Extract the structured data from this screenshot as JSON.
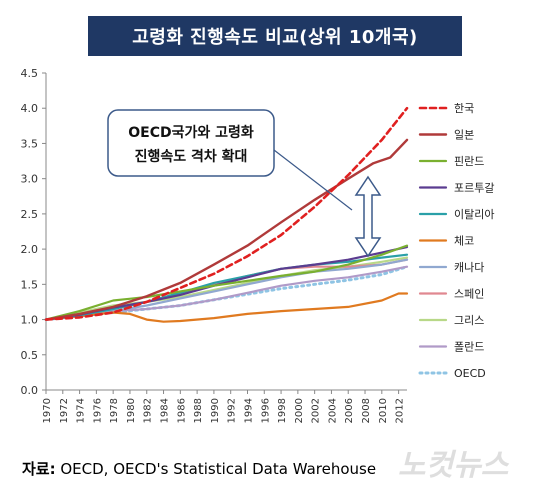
{
  "title": "고령화  진행속도 비교(상위 10개국)",
  "source_label": "자료:",
  "source_text": " OECD, OECD's Statistical Data Warehouse",
  "watermark": "노컷뉴스",
  "annotation": [
    "OECD국가와 고령화",
    "진행속도 격차 확대"
  ],
  "chart_data": {
    "type": "line",
    "title": "고령화  진행속도 비교(상위 10개국)",
    "xlabel": "",
    "ylabel": "",
    "xlim": [
      1970,
      2013
    ],
    "ylim": [
      0.0,
      4.5
    ],
    "yticks": [
      "0.0",
      "0.5",
      "1.0",
      "1.5",
      "2.0",
      "2.5",
      "3.0",
      "3.5",
      "4.0",
      "4.5"
    ],
    "xticks": [
      "1970",
      "1972",
      "1974",
      "1976",
      "1978",
      "1980",
      "1982",
      "1984",
      "1986",
      "1988",
      "1990",
      "1992",
      "1994",
      "1996",
      "1998",
      "2000",
      "2002",
      "2004",
      "2006",
      "2008",
      "2010",
      "2012"
    ],
    "grid": false,
    "legend": "right",
    "series": [
      {
        "name": "한국",
        "color": "#e02020",
        "dash": "6,4",
        "width": 2.6,
        "points": [
          [
            1970,
            1.0
          ],
          [
            1974,
            1.03
          ],
          [
            1978,
            1.1
          ],
          [
            1982,
            1.25
          ],
          [
            1986,
            1.45
          ],
          [
            1990,
            1.65
          ],
          [
            1994,
            1.9
          ],
          [
            1998,
            2.2
          ],
          [
            2002,
            2.6
          ],
          [
            2006,
            3.05
          ],
          [
            2010,
            3.55
          ],
          [
            2013,
            4.0
          ]
        ]
      },
      {
        "name": "일본",
        "color": "#b03a3a",
        "dash": "",
        "width": 2.4,
        "points": [
          [
            1970,
            1.0
          ],
          [
            1974,
            1.08
          ],
          [
            1978,
            1.18
          ],
          [
            1982,
            1.33
          ],
          [
            1986,
            1.52
          ],
          [
            1990,
            1.78
          ],
          [
            1994,
            2.05
          ],
          [
            1998,
            2.38
          ],
          [
            2002,
            2.7
          ],
          [
            2006,
            3.0
          ],
          [
            2009,
            3.22
          ],
          [
            2011,
            3.3
          ],
          [
            2013,
            3.55
          ]
        ]
      },
      {
        "name": "핀란드",
        "color": "#7ab030",
        "dash": "",
        "width": 2.2,
        "points": [
          [
            1970,
            1.0
          ],
          [
            1974,
            1.12
          ],
          [
            1978,
            1.27
          ],
          [
            1982,
            1.32
          ],
          [
            1986,
            1.4
          ],
          [
            1990,
            1.48
          ],
          [
            1994,
            1.55
          ],
          [
            1998,
            1.62
          ],
          [
            2002,
            1.68
          ],
          [
            2006,
            1.78
          ],
          [
            2010,
            1.92
          ],
          [
            2013,
            2.05
          ]
        ]
      },
      {
        "name": "포르투갈",
        "color": "#5b3c90",
        "dash": "",
        "width": 2.2,
        "points": [
          [
            1970,
            1.0
          ],
          [
            1974,
            1.07
          ],
          [
            1978,
            1.17
          ],
          [
            1982,
            1.25
          ],
          [
            1986,
            1.35
          ],
          [
            1990,
            1.48
          ],
          [
            1994,
            1.6
          ],
          [
            1998,
            1.72
          ],
          [
            2002,
            1.78
          ],
          [
            2006,
            1.85
          ],
          [
            2010,
            1.95
          ],
          [
            2013,
            2.03
          ]
        ]
      },
      {
        "name": "이탈리아",
        "color": "#2aa0a8",
        "dash": "",
        "width": 2.2,
        "points": [
          [
            1970,
            1.0
          ],
          [
            1974,
            1.06
          ],
          [
            1978,
            1.15
          ],
          [
            1982,
            1.25
          ],
          [
            1986,
            1.38
          ],
          [
            1990,
            1.52
          ],
          [
            1994,
            1.62
          ],
          [
            1998,
            1.72
          ],
          [
            2002,
            1.78
          ],
          [
            2006,
            1.82
          ],
          [
            2010,
            1.88
          ],
          [
            2013,
            1.92
          ]
        ]
      },
      {
        "name": "체코",
        "color": "#e07a20",
        "dash": "",
        "width": 2.2,
        "points": [
          [
            1970,
            1.0
          ],
          [
            1974,
            1.05
          ],
          [
            1978,
            1.1
          ],
          [
            1980,
            1.08
          ],
          [
            1982,
            1.0
          ],
          [
            1984,
            0.97
          ],
          [
            1986,
            0.98
          ],
          [
            1990,
            1.02
          ],
          [
            1994,
            1.08
          ],
          [
            1998,
            1.12
          ],
          [
            2002,
            1.15
          ],
          [
            2006,
            1.18
          ],
          [
            2010,
            1.27
          ],
          [
            2012,
            1.37
          ],
          [
            2013,
            1.37
          ]
        ]
      },
      {
        "name": "캐나다",
        "color": "#90a8d0",
        "dash": "",
        "width": 2.2,
        "points": [
          [
            1970,
            1.0
          ],
          [
            1974,
            1.05
          ],
          [
            1978,
            1.12
          ],
          [
            1982,
            1.2
          ],
          [
            1986,
            1.3
          ],
          [
            1990,
            1.4
          ],
          [
            1994,
            1.5
          ],
          [
            1998,
            1.6
          ],
          [
            2002,
            1.68
          ],
          [
            2006,
            1.72
          ],
          [
            2010,
            1.78
          ],
          [
            2013,
            1.85
          ]
        ]
      },
      {
        "name": "스페인",
        "color": "#e08890",
        "dash": "",
        "width": 2.2,
        "points": [
          [
            1970,
            1.0
          ],
          [
            1974,
            1.08
          ],
          [
            1978,
            1.16
          ],
          [
            1982,
            1.25
          ],
          [
            1986,
            1.38
          ],
          [
            1990,
            1.5
          ],
          [
            1994,
            1.62
          ],
          [
            1998,
            1.72
          ],
          [
            2002,
            1.75
          ],
          [
            2006,
            1.75
          ],
          [
            2010,
            1.78
          ],
          [
            2013,
            1.85
          ]
        ]
      },
      {
        "name": "그리스",
        "color": "#b8d888",
        "dash": "",
        "width": 2.2,
        "points": [
          [
            1970,
            1.0
          ],
          [
            1974,
            1.1
          ],
          [
            1978,
            1.2
          ],
          [
            1982,
            1.25
          ],
          [
            1986,
            1.32
          ],
          [
            1990,
            1.42
          ],
          [
            1994,
            1.52
          ],
          [
            1998,
            1.62
          ],
          [
            2002,
            1.7
          ],
          [
            2006,
            1.75
          ],
          [
            2010,
            1.82
          ],
          [
            2013,
            1.88
          ]
        ]
      },
      {
        "name": "폴란드",
        "color": "#b09ac8",
        "dash": "",
        "width": 2.2,
        "points": [
          [
            1970,
            1.0
          ],
          [
            1974,
            1.06
          ],
          [
            1978,
            1.12
          ],
          [
            1982,
            1.15
          ],
          [
            1986,
            1.2
          ],
          [
            1990,
            1.28
          ],
          [
            1994,
            1.38
          ],
          [
            1998,
            1.48
          ],
          [
            2002,
            1.55
          ],
          [
            2006,
            1.6
          ],
          [
            2010,
            1.68
          ],
          [
            2013,
            1.75
          ]
        ]
      },
      {
        "name": "OECD",
        "color": "#8fc4e4",
        "dash": "2,4",
        "width": 3.0,
        "points": [
          [
            1970,
            1.0
          ],
          [
            1974,
            1.05
          ],
          [
            1978,
            1.1
          ],
          [
            1982,
            1.15
          ],
          [
            1986,
            1.2
          ],
          [
            1990,
            1.28
          ],
          [
            1994,
            1.36
          ],
          [
            1998,
            1.44
          ],
          [
            2002,
            1.5
          ],
          [
            2006,
            1.56
          ],
          [
            2010,
            1.64
          ],
          [
            2013,
            1.75
          ]
        ]
      }
    ]
  }
}
